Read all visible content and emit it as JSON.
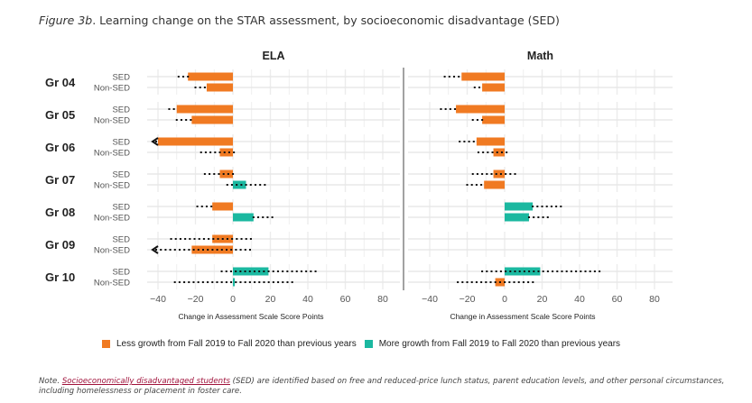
{
  "figure": {
    "label": "Figure 3b",
    "title": ". Learning change on the STAR assessment, by socioeconomic disadvantage (SED)"
  },
  "colors": {
    "less": "#F07A22",
    "more": "#1BB8A0"
  },
  "legend": {
    "less_label": "Less growth from Fall 2019 to Fall 2020 than previous years",
    "more_label": "More growth from Fall 2019 to Fall 2020 than previous years"
  },
  "note": {
    "prefix": "Note. ",
    "link_text": "Socioeconomically disadvantaged students",
    "text": " (SED) are identified based on free and reduced-price lunch status, parent education levels, and other personal circumstances, including homelessness or placement in foster care."
  },
  "chart_data": {
    "type": "bar",
    "xlabel": "Change in Assessment Scale Score Points",
    "xlim": [
      -45,
      90
    ],
    "xticks": [
      -40,
      -20,
      0,
      20,
      40,
      60,
      80
    ],
    "grid": true,
    "legend_position": "bottom",
    "groups": [
      "Gr 04",
      "Gr 05",
      "Gr 06",
      "Gr 07",
      "Gr 08",
      "Gr 09",
      "Gr 10"
    ],
    "subgroups": [
      "SED",
      "Non-SED"
    ],
    "panels": [
      {
        "name": "ELA",
        "series": [
          {
            "group": "Gr 04",
            "sub": "SED",
            "value": -24,
            "ci": [
              -29,
              -24
            ]
          },
          {
            "group": "Gr 04",
            "sub": "Non-SED",
            "value": -14,
            "ci": [
              -20,
              -14
            ]
          },
          {
            "group": "Gr 05",
            "sub": "SED",
            "value": -30,
            "ci": [
              -34,
              -30
            ]
          },
          {
            "group": "Gr 05",
            "sub": "Non-SED",
            "value": -22,
            "ci": [
              -30,
              -22
            ]
          },
          {
            "group": "Gr 06",
            "sub": "SED",
            "value": -40,
            "ci": [
              -48,
              -40
            ]
          },
          {
            "group": "Gr 06",
            "sub": "Non-SED",
            "value": -7,
            "ci": [
              -17,
              2
            ]
          },
          {
            "group": "Gr 07",
            "sub": "SED",
            "value": -7,
            "ci": [
              -15,
              1
            ]
          },
          {
            "group": "Gr 07",
            "sub": "Non-SED",
            "value": 7,
            "ci": [
              -3,
              19
            ]
          },
          {
            "group": "Gr 08",
            "sub": "SED",
            "value": -11,
            "ci": [
              -19,
              -11
            ]
          },
          {
            "group": "Gr 08",
            "sub": "Non-SED",
            "value": 11,
            "ci": [
              11,
              22
            ]
          },
          {
            "group": "Gr 09",
            "sub": "SED",
            "value": -11,
            "ci": [
              -33,
              11
            ]
          },
          {
            "group": "Gr 09",
            "sub": "Non-SED",
            "value": -22,
            "ci": [
              -48,
              11
            ]
          },
          {
            "group": "Gr 10",
            "sub": "SED",
            "value": 19,
            "ci": [
              -6,
              45
            ]
          },
          {
            "group": "Gr 10",
            "sub": "Non-SED",
            "value": 1,
            "ci": [
              -31,
              33
            ]
          }
        ]
      },
      {
        "name": "Math",
        "series": [
          {
            "group": "Gr 04",
            "sub": "SED",
            "value": -23,
            "ci": [
              -32,
              -23
            ]
          },
          {
            "group": "Gr 04",
            "sub": "Non-SED",
            "value": -12,
            "ci": [
              -16,
              -12
            ]
          },
          {
            "group": "Gr 05",
            "sub": "SED",
            "value": -26,
            "ci": [
              -34,
              -26
            ]
          },
          {
            "group": "Gr 05",
            "sub": "Non-SED",
            "value": -12,
            "ci": [
              -17,
              -12
            ]
          },
          {
            "group": "Gr 06",
            "sub": "SED",
            "value": -15,
            "ci": [
              -24,
              -15
            ]
          },
          {
            "group": "Gr 06",
            "sub": "Non-SED",
            "value": -6,
            "ci": [
              -14,
              2
            ]
          },
          {
            "group": "Gr 07",
            "sub": "SED",
            "value": -6,
            "ci": [
              -17,
              6
            ]
          },
          {
            "group": "Gr 07",
            "sub": "Non-SED",
            "value": -11,
            "ci": [
              -20,
              -11
            ]
          },
          {
            "group": "Gr 08",
            "sub": "SED",
            "value": 15,
            "ci": [
              15,
              30
            ]
          },
          {
            "group": "Gr 08",
            "sub": "Non-SED",
            "value": 13,
            "ci": [
              13,
              24
            ]
          },
          {
            "group": "Gr 10",
            "sub": "SED",
            "value": 19,
            "ci": [
              -12,
              51
            ]
          },
          {
            "group": "Gr 10",
            "sub": "Non-SED",
            "value": -5,
            "ci": [
              -25,
              16
            ]
          }
        ]
      }
    ]
  }
}
